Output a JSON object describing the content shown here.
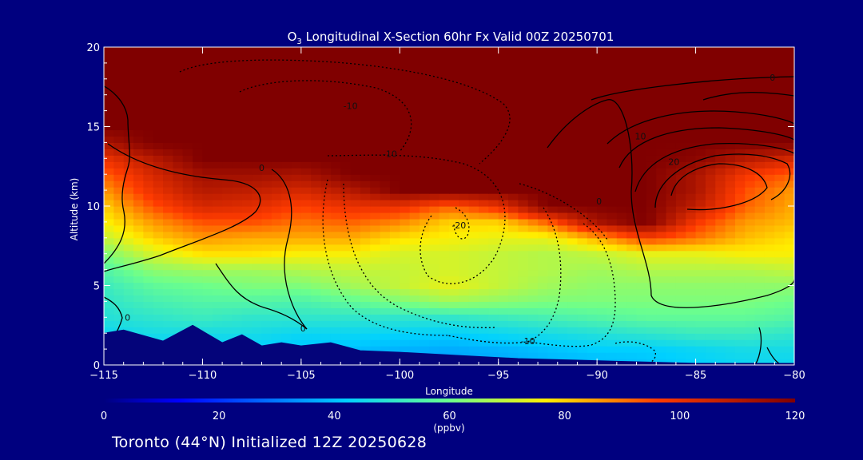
{
  "chart_data": {
    "type": "heatmap",
    "title_main": "O",
    "title_sub": "3",
    "title_rest": " Longitudinal X-Section 60hr  Fx Valid 00Z 20250701",
    "xlabel": "Longitude",
    "ylabel": "Altitude (km)",
    "xlim": [
      -115,
      -80
    ],
    "ylim": [
      0,
      20
    ],
    "x_ticks": [
      -115,
      -110,
      -105,
      -100,
      -95,
      -90,
      -85,
      -80
    ],
    "x_tick_labels": [
      "−115",
      "−110",
      "−105",
      "−100",
      "−95",
      "−90",
      "−85",
      "−80"
    ],
    "y_ticks": [
      0,
      5,
      10,
      15,
      20
    ],
    "y_tick_labels": [
      "0",
      "5",
      "10",
      "15",
      "20"
    ],
    "colorbar": {
      "min": 0,
      "max": 120,
      "unit": "(ppbv)",
      "ticks": [
        0,
        20,
        40,
        60,
        80,
        100,
        120
      ],
      "tick_labels": [
        "0",
        "20",
        "40",
        "60",
        "80",
        "100",
        "120"
      ]
    },
    "ozone_field": {
      "description_units": "ppbv",
      "altitudes_km": [
        0,
        1,
        2,
        3,
        4,
        5,
        6,
        7,
        8,
        9,
        10,
        11,
        12,
        13,
        14,
        15,
        16,
        17,
        18,
        19,
        20
      ],
      "longitudes": [
        -115,
        -112.5,
        -110,
        -107.5,
        -105,
        -102.5,
        -100,
        -97.5,
        -95,
        -92.5,
        -90,
        -87.5,
        -85,
        -82.5,
        -80
      ],
      "values": [
        [
          42,
          42,
          42,
          40,
          38,
          38,
          36,
          36,
          36,
          38,
          38,
          40,
          42,
          44,
          44
        ],
        [
          42,
          42,
          42,
          42,
          40,
          40,
          38,
          37,
          38,
          40,
          42,
          42,
          44,
          46,
          46
        ],
        [
          44,
          46,
          46,
          46,
          44,
          44,
          43,
          42,
          44,
          46,
          48,
          50,
          52,
          52,
          50
        ],
        [
          48,
          50,
          52,
          50,
          50,
          50,
          50,
          50,
          52,
          54,
          56,
          58,
          58,
          58,
          56
        ],
        [
          50,
          54,
          56,
          56,
          55,
          58,
          62,
          66,
          64,
          62,
          62,
          62,
          62,
          62,
          60
        ],
        [
          52,
          58,
          60,
          62,
          62,
          66,
          70,
          74,
          70,
          66,
          64,
          64,
          64,
          64,
          64
        ],
        [
          56,
          64,
          66,
          66,
          68,
          70,
          70,
          72,
          70,
          68,
          66,
          68,
          68,
          68,
          70
        ],
        [
          62,
          72,
          78,
          78,
          76,
          76,
          72,
          72,
          70,
          68,
          70,
          74,
          74,
          76,
          76
        ],
        [
          70,
          80,
          86,
          84,
          84,
          84,
          78,
          76,
          74,
          74,
          84,
          96,
          90,
          82,
          78
        ],
        [
          76,
          86,
          94,
          94,
          90,
          92,
          88,
          80,
          80,
          92,
          112,
          120,
          98,
          86,
          82
        ],
        [
          80,
          94,
          104,
          102,
          96,
          100,
          100,
          92,
          100,
          120,
          120,
          120,
          108,
          92,
          84
        ],
        [
          86,
          100,
          110,
          108,
          104,
          110,
          120,
          120,
          120,
          120,
          120,
          120,
          112,
          94,
          86
        ],
        [
          92,
          104,
          114,
          114,
          112,
          120,
          120,
          120,
          120,
          120,
          120,
          120,
          112,
          98,
          92
        ],
        [
          100,
          110,
          120,
          120,
          120,
          120,
          120,
          120,
          120,
          120,
          120,
          120,
          118,
          110,
          104
        ],
        [
          112,
          120,
          120,
          120,
          120,
          120,
          120,
          120,
          120,
          120,
          120,
          120,
          120,
          120,
          120
        ],
        [
          120,
          120,
          120,
          120,
          120,
          120,
          120,
          120,
          120,
          120,
          120,
          120,
          120,
          120,
          120
        ],
        [
          120,
          120,
          120,
          120,
          120,
          120,
          120,
          120,
          120,
          120,
          120,
          120,
          120,
          120,
          120
        ],
        [
          120,
          120,
          120,
          120,
          120,
          120,
          120,
          120,
          120,
          120,
          120,
          120,
          120,
          120,
          120
        ],
        [
          120,
          120,
          120,
          120,
          120,
          120,
          120,
          120,
          120,
          120,
          120,
          120,
          120,
          120,
          120
        ],
        [
          120,
          120,
          120,
          120,
          120,
          120,
          120,
          120,
          120,
          120,
          120,
          120,
          120,
          120,
          120
        ],
        [
          120,
          120,
          120,
          120,
          120,
          120,
          120,
          120,
          120,
          120,
          120,
          120,
          120,
          120,
          120
        ]
      ]
    },
    "terrain_km": {
      "longitudes": [
        -115,
        -114,
        -112,
        -110.5,
        -109,
        -108,
        -107,
        -106,
        -105,
        -103.5,
        -102,
        -100,
        -97,
        -94,
        -91,
        -88,
        -85,
        -82,
        -80
      ],
      "heights": [
        2.0,
        2.2,
        1.5,
        2.5,
        1.4,
        1.9,
        1.2,
        1.4,
        1.2,
        1.4,
        0.9,
        0.8,
        0.6,
        0.4,
        0.3,
        0.2,
        0.1,
        0.1,
        0.1
      ]
    },
    "contour_labels": [
      {
        "text": "0",
        "lon": -113.8,
        "alt": 2.8
      },
      {
        "text": "0",
        "lon": -104.9,
        "alt": 2.1
      },
      {
        "text": "0",
        "lon": -107.0,
        "alt": 12.2
      },
      {
        "text": "-10",
        "lon": -100.5,
        "alt": 13.1
      },
      {
        "text": "-10",
        "lon": -102.5,
        "alt": 16.1
      },
      {
        "text": "-20",
        "lon": -97.0,
        "alt": 8.6
      },
      {
        "text": "-10",
        "lon": -93.5,
        "alt": 1.3
      },
      {
        "text": "0",
        "lon": -89.9,
        "alt": 10.1
      },
      {
        "text": "10",
        "lon": -87.8,
        "alt": 14.2
      },
      {
        "text": "20",
        "lon": -86.1,
        "alt": 12.6
      },
      {
        "text": "0",
        "lon": -81.1,
        "alt": 17.9
      }
    ],
    "colors": {
      "background": "#00007f",
      "terrain": "#04047a",
      "contour": "#000000"
    }
  },
  "footer": "Toronto (44°N) Initialized 12Z 20250628"
}
